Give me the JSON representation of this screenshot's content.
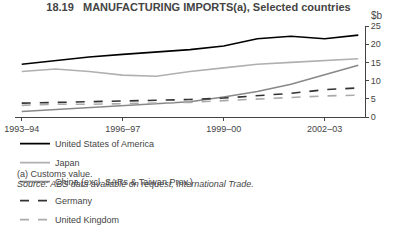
{
  "chart_data": {
    "type": "line",
    "title": "18.19   MANUFACTURING IMPORTS(a), Selected countries",
    "ylabel": "$b",
    "annotations": [
      "(a) Customs value.",
      "Source: ABS data available on request, International Trade."
    ],
    "categories": [
      "1993–94",
      null,
      null,
      "1996–97",
      null,
      null,
      "1999–00",
      null,
      null,
      "2002–03",
      null
    ],
    "series": [
      {
        "name": "United States of America",
        "color": "#000000",
        "line_style": "solid",
        "values": [
          14.5,
          15.5,
          16.5,
          17.2,
          17.8,
          18.5,
          19.5,
          21.5,
          22.2,
          21.5,
          22.5
        ]
      },
      {
        "name": "Japan",
        "color": "#b0b0b0",
        "line_style": "solid",
        "values": [
          12.5,
          13.2,
          12.5,
          11.5,
          11.2,
          12.5,
          13.5,
          14.5,
          15.0,
          15.5,
          16.0
        ]
      },
      {
        "name": "China (excl. SARs & Taiwan Prov.)",
        "color": "#888888",
        "line_style": "solid",
        "values": [
          1.5,
          2.0,
          2.5,
          3.0,
          3.5,
          4.2,
          5.5,
          7.0,
          9.0,
          11.5,
          14.2
        ]
      },
      {
        "name": "Germany",
        "color": "#333333",
        "line_style": "dashed",
        "values": [
          3.8,
          4.0,
          4.2,
          4.3,
          4.5,
          4.8,
          5.2,
          5.8,
          6.5,
          7.5,
          8.0
        ]
      },
      {
        "name": "United Kingdom",
        "color": "#aaaaaa",
        "line_style": "dashed",
        "values": [
          3.2,
          3.5,
          3.5,
          3.6,
          3.8,
          4.0,
          4.5,
          5.0,
          5.5,
          5.8,
          6.0
        ]
      }
    ],
    "ylim": [
      0,
      25
    ],
    "yticks": [
      0,
      5,
      10,
      15,
      20,
      25
    ],
    "grid": false,
    "legend": "bottom"
  }
}
